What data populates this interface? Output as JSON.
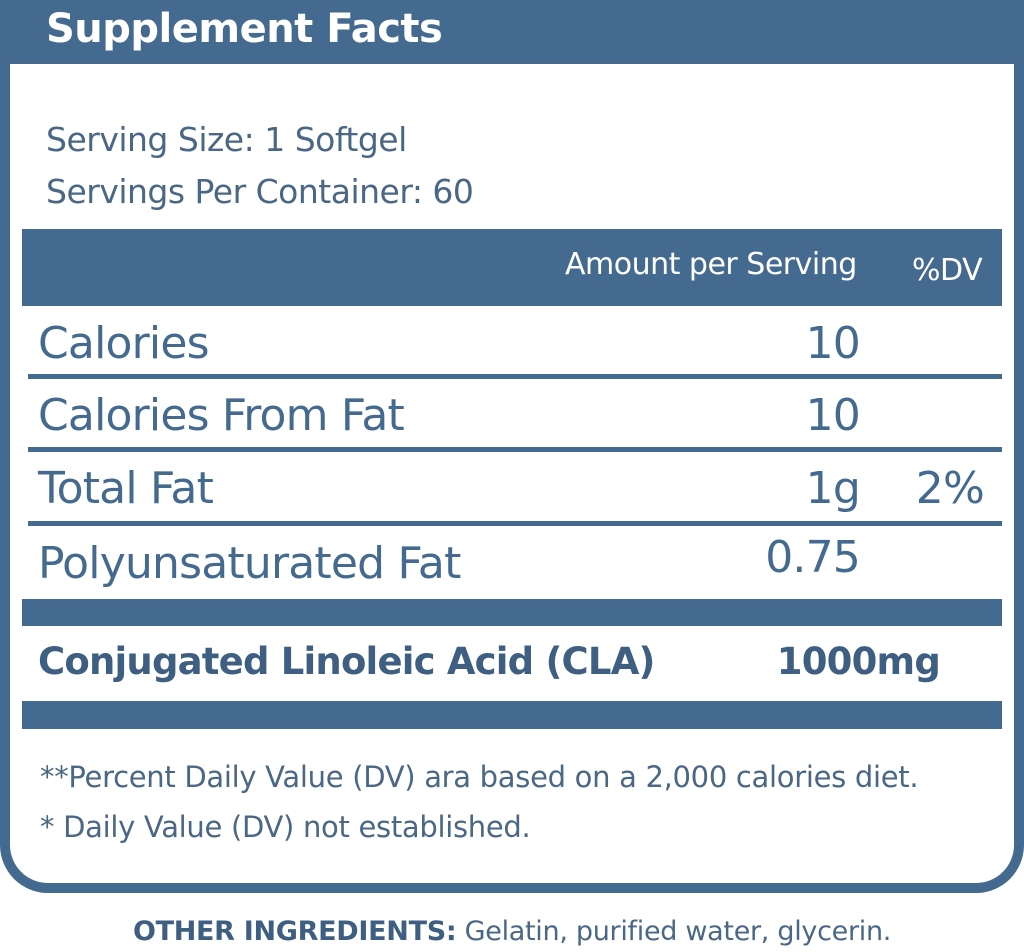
{
  "label": {
    "title": "Supplement Facts",
    "serving_size": "Serving Size: 1 Softgel",
    "servings_per_container": "Servings Per Container: 60",
    "header": {
      "amount": "Amount per Serving",
      "dv": "%DV"
    },
    "rows": [
      {
        "name": "Calories",
        "amount": "10",
        "dv": ""
      },
      {
        "name": "Calories From Fat",
        "amount": "10",
        "dv": ""
      },
      {
        "name": "Total Fat",
        "amount": "1g",
        "dv": "2%"
      },
      {
        "name": "Polyunsaturated Fat",
        "amount": "0.75",
        "dv": ""
      }
    ],
    "featured": {
      "name": "Conjugated Linoleic Acid (CLA)",
      "amount": "1000mg"
    },
    "footnotes": [
      "**Percent Daily Value (DV) ara based on a 2,000 calories diet.",
      "* Daily Value (DV) not established."
    ]
  },
  "other_ingredients": {
    "label": "OTHER INGREDIENTS:",
    "text": " Gelatin, purified water, glycerin."
  },
  "colors": {
    "primary": "#456a8f",
    "text": "#4a6785"
  }
}
